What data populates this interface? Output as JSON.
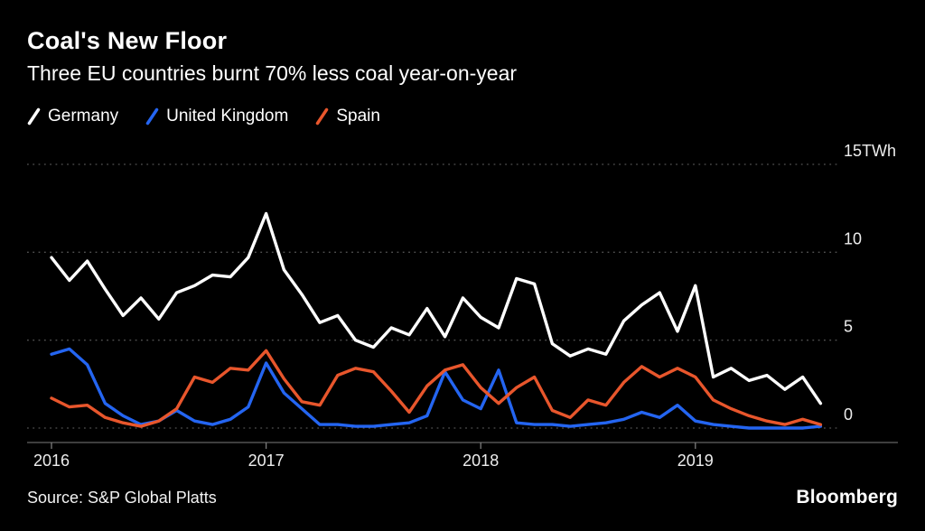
{
  "footer": {
    "source": "Source: S&P Global Platts",
    "brand": "Bloomberg"
  },
  "chart_data": {
    "type": "line",
    "title": "Coal's New Floor",
    "subtitle": "Three EU countries burnt 70% less coal year-on-year",
    "unit": "TWh",
    "x_start": "2016-01",
    "frequency": "monthly",
    "ylim": [
      -0.8,
      15.5
    ],
    "grid": "horizontal-dotted",
    "legend_position": "top-left",
    "background_color": "#000000",
    "y_ticks": [
      {
        "label": "15TWh",
        "value": 15
      },
      {
        "label": "10",
        "value": 10
      },
      {
        "label": "5",
        "value": 5
      },
      {
        "label": "0",
        "value": 0
      }
    ],
    "x_ticks": [
      {
        "label": "2016",
        "index": 0
      },
      {
        "label": "2017",
        "index": 12
      },
      {
        "label": "2018",
        "index": 24
      },
      {
        "label": "2019",
        "index": 36
      }
    ],
    "series": [
      {
        "name": "Germany",
        "color": "#ffffff",
        "values": [
          9.7,
          8.4,
          9.5,
          7.9,
          6.4,
          7.4,
          6.2,
          7.7,
          8.1,
          8.7,
          8.6,
          9.7,
          12.2,
          9.0,
          7.6,
          6.0,
          6.4,
          5.0,
          4.6,
          5.7,
          5.3,
          6.8,
          5.2,
          7.4,
          6.3,
          5.7,
          8.5,
          8.2,
          4.8,
          4.1,
          4.5,
          4.2,
          6.1,
          7.0,
          7.7,
          5.5,
          8.1,
          2.9,
          3.4,
          2.7,
          3.0,
          2.2,
          2.9,
          1.4
        ]
      },
      {
        "name": "United Kingdom",
        "color": "#2465f1",
        "values": [
          4.2,
          4.5,
          3.6,
          1.4,
          0.7,
          0.2,
          0.4,
          1.0,
          0.4,
          0.2,
          0.5,
          1.2,
          3.7,
          2.0,
          1.1,
          0.2,
          0.2,
          0.1,
          0.1,
          0.2,
          0.3,
          0.7,
          3.2,
          1.6,
          1.1,
          3.3,
          0.3,
          0.2,
          0.2,
          0.1,
          0.2,
          0.3,
          0.5,
          0.9,
          0.6,
          1.3,
          0.4,
          0.2,
          0.1,
          0.0,
          0.0,
          0.0,
          0.0,
          0.1
        ]
      },
      {
        "name": "Spain",
        "color": "#e8562c",
        "values": [
          1.7,
          1.2,
          1.3,
          0.6,
          0.3,
          0.1,
          0.4,
          1.1,
          2.9,
          2.6,
          3.4,
          3.3,
          4.4,
          2.8,
          1.5,
          1.3,
          3.0,
          3.4,
          3.2,
          2.1,
          0.9,
          2.4,
          3.3,
          3.6,
          2.3,
          1.4,
          2.3,
          2.9,
          1.0,
          0.6,
          1.6,
          1.3,
          2.6,
          3.5,
          2.9,
          3.4,
          2.9,
          1.6,
          1.1,
          0.7,
          0.4,
          0.2,
          0.5,
          0.2
        ]
      }
    ]
  }
}
